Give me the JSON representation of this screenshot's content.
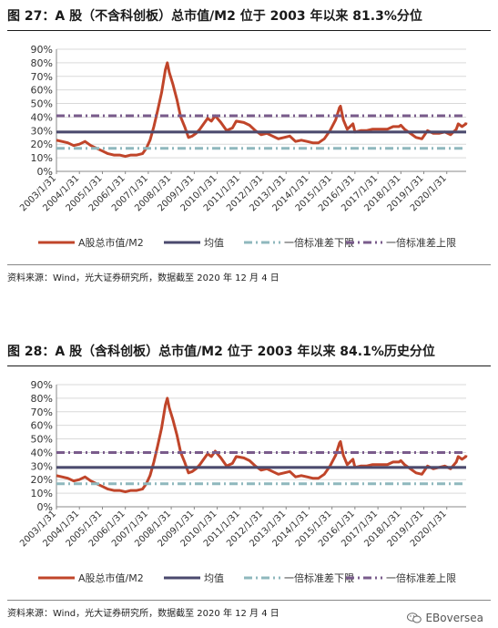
{
  "panels": [
    {
      "title": "图 27：A 股（不含科创板）总市值/M2 位于 2003 年以来 81.3%分位",
      "source": "资料来源：Wind，光大证券研究所，数据截至 2020 年 12 月 4 日"
    },
    {
      "title": "图 28：A 股（含科创板）总市值/M2 位于 2003 年以来 84.1%历史分位",
      "source": "资料来源：Wind，光大证券研究所，数据截至 2020 年 12 月 4 日"
    }
  ],
  "watermark": {
    "text": "EBoversea",
    "icon": "wechat-icon"
  },
  "colors": {
    "ratio": "#c0452a",
    "mean": "#4b4a6e",
    "lower": "#8fb8bd",
    "upper": "#7a5c8c",
    "grid": "#d9d9d9",
    "axis": "#888888"
  },
  "chart_data": [
    {
      "type": "line",
      "title": "",
      "xlabel": "",
      "ylabel": "",
      "ylim": [
        0,
        90
      ],
      "y_unit": "%",
      "y_ticks": [
        "0%",
        "10%",
        "20%",
        "30%",
        "40%",
        "50%",
        "60%",
        "70%",
        "80%",
        "90%"
      ],
      "x_ticks": [
        "2003/1/31",
        "2004/1/31",
        "2005/1/31",
        "2006/1/31",
        "2007/1/31",
        "2008/1/31",
        "2009/1/31",
        "2010/1/31",
        "2011/1/31",
        "2012/1/31",
        "2013/1/31",
        "2014/1/31",
        "2015/1/31",
        "2016/1/31",
        "2017/1/31",
        "2018/1/31",
        "2019/1/31",
        "2020/1/31"
      ],
      "x_range": [
        "2003-01-31",
        "2020-12-04"
      ],
      "legend_position": "bottom",
      "grid": true,
      "series": [
        {
          "name": "A股总市值/M2",
          "style": "solid",
          "points": [
            [
              "2003-01-31",
              23
            ],
            [
              "2003-04-30",
              22
            ],
            [
              "2003-07-31",
              21
            ],
            [
              "2003-10-31",
              19
            ],
            [
              "2004-01-31",
              20
            ],
            [
              "2004-04-30",
              22
            ],
            [
              "2004-07-31",
              19
            ],
            [
              "2004-10-31",
              17
            ],
            [
              "2005-01-31",
              15
            ],
            [
              "2005-04-30",
              13
            ],
            [
              "2005-07-31",
              12
            ],
            [
              "2005-10-31",
              12
            ],
            [
              "2006-01-31",
              11
            ],
            [
              "2006-04-30",
              12
            ],
            [
              "2006-07-31",
              12
            ],
            [
              "2006-10-31",
              13
            ],
            [
              "2006-12-31",
              17
            ],
            [
              "2007-02-28",
              23
            ],
            [
              "2007-04-30",
              33
            ],
            [
              "2007-06-30",
              45
            ],
            [
              "2007-08-31",
              58
            ],
            [
              "2007-10-31",
              75
            ],
            [
              "2007-11-30",
              80
            ],
            [
              "2007-12-31",
              73
            ],
            [
              "2008-02-28",
              64
            ],
            [
              "2008-04-30",
              53
            ],
            [
              "2008-06-30",
              40
            ],
            [
              "2008-08-31",
              33
            ],
            [
              "2008-10-31",
              25
            ],
            [
              "2008-12-31",
              26
            ],
            [
              "2009-02-28",
              28
            ],
            [
              "2009-04-30",
              31
            ],
            [
              "2009-06-30",
              35
            ],
            [
              "2009-08-31",
              39
            ],
            [
              "2009-10-31",
              37
            ],
            [
              "2009-12-31",
              41
            ],
            [
              "2010-03-31",
              36
            ],
            [
              "2010-06-30",
              30
            ],
            [
              "2010-09-30",
              32
            ],
            [
              "2010-11-30",
              37
            ],
            [
              "2011-03-31",
              36
            ],
            [
              "2011-06-30",
              34
            ],
            [
              "2011-09-30",
              30
            ],
            [
              "2011-12-31",
              27
            ],
            [
              "2012-03-31",
              28
            ],
            [
              "2012-06-30",
              26
            ],
            [
              "2012-09-30",
              24
            ],
            [
              "2012-12-31",
              25
            ],
            [
              "2013-03-31",
              26
            ],
            [
              "2013-06-30",
              22
            ],
            [
              "2013-09-30",
              23
            ],
            [
              "2013-12-31",
              22
            ],
            [
              "2014-03-31",
              21
            ],
            [
              "2014-06-30",
              21
            ],
            [
              "2014-09-30",
              24
            ],
            [
              "2014-12-31",
              30
            ],
            [
              "2015-03-31",
              38
            ],
            [
              "2015-05-31",
              47
            ],
            [
              "2015-06-15",
              48
            ],
            [
              "2015-07-31",
              38
            ],
            [
              "2015-09-30",
              31
            ],
            [
              "2015-12-31",
              35
            ],
            [
              "2016-01-31",
              29
            ],
            [
              "2016-04-30",
              30
            ],
            [
              "2016-07-31",
              30
            ],
            [
              "2016-10-31",
              31
            ],
            [
              "2016-12-31",
              31
            ],
            [
              "2017-03-31",
              31
            ],
            [
              "2017-06-30",
              31
            ],
            [
              "2017-09-30",
              33
            ],
            [
              "2017-12-31",
              33
            ],
            [
              "2018-01-31",
              34
            ],
            [
              "2018-03-31",
              31
            ],
            [
              "2018-06-30",
              28
            ],
            [
              "2018-09-30",
              25
            ],
            [
              "2018-12-31",
              24
            ],
            [
              "2019-03-31",
              30
            ],
            [
              "2019-06-30",
              28
            ],
            [
              "2019-09-30",
              28
            ],
            [
              "2019-12-31",
              29
            ],
            [
              "2020-03-31",
              27
            ],
            [
              "2020-06-30",
              31
            ],
            [
              "2020-07-31",
              35
            ],
            [
              "2020-09-30",
              33
            ],
            [
              "2020-11-30",
              35
            ],
            [
              "2020-12-04",
              36
            ]
          ]
        },
        {
          "name": "均值",
          "style": "solid",
          "constant": 29
        },
        {
          "name": "一倍标准差下限",
          "style": "dashdot",
          "constant": 17
        },
        {
          "name": "一倍标准差上限",
          "style": "dashdot",
          "constant": 41
        }
      ]
    },
    {
      "type": "line",
      "title": "",
      "xlabel": "",
      "ylabel": "",
      "ylim": [
        0,
        90
      ],
      "y_unit": "%",
      "y_ticks": [
        "0%",
        "10%",
        "20%",
        "30%",
        "40%",
        "50%",
        "60%",
        "70%",
        "80%",
        "90%"
      ],
      "x_ticks": [
        "2003/1/31",
        "2004/1/31",
        "2005/1/31",
        "2006/1/31",
        "2007/1/31",
        "2008/1/31",
        "2009/1/31",
        "2010/1/31",
        "2011/1/31",
        "2012/1/31",
        "2013/1/31",
        "2014/1/31",
        "2015/1/31",
        "2016/1/31",
        "2017/1/31",
        "2018/1/31",
        "2019/1/31",
        "2020/1/31"
      ],
      "x_range": [
        "2003-01-31",
        "2020-12-04"
      ],
      "legend_position": "bottom",
      "grid": true,
      "series": [
        {
          "name": "A股总市值/M2",
          "style": "solid",
          "points": [
            [
              "2003-01-31",
              23
            ],
            [
              "2003-04-30",
              22
            ],
            [
              "2003-07-31",
              21
            ],
            [
              "2003-10-31",
              19
            ],
            [
              "2004-01-31",
              20
            ],
            [
              "2004-04-30",
              22
            ],
            [
              "2004-07-31",
              19
            ],
            [
              "2004-10-31",
              17
            ],
            [
              "2005-01-31",
              15
            ],
            [
              "2005-04-30",
              13
            ],
            [
              "2005-07-31",
              12
            ],
            [
              "2005-10-31",
              12
            ],
            [
              "2006-01-31",
              11
            ],
            [
              "2006-04-30",
              12
            ],
            [
              "2006-07-31",
              12
            ],
            [
              "2006-10-31",
              13
            ],
            [
              "2006-12-31",
              17
            ],
            [
              "2007-02-28",
              23
            ],
            [
              "2007-04-30",
              33
            ],
            [
              "2007-06-30",
              45
            ],
            [
              "2007-08-31",
              58
            ],
            [
              "2007-10-31",
              75
            ],
            [
              "2007-11-30",
              80
            ],
            [
              "2007-12-31",
              73
            ],
            [
              "2008-02-28",
              64
            ],
            [
              "2008-04-30",
              53
            ],
            [
              "2008-06-30",
              40
            ],
            [
              "2008-08-31",
              33
            ],
            [
              "2008-10-31",
              25
            ],
            [
              "2008-12-31",
              26
            ],
            [
              "2009-02-28",
              28
            ],
            [
              "2009-04-30",
              31
            ],
            [
              "2009-06-30",
              35
            ],
            [
              "2009-08-31",
              39
            ],
            [
              "2009-10-31",
              37
            ],
            [
              "2009-12-31",
              41
            ],
            [
              "2010-03-31",
              36
            ],
            [
              "2010-06-30",
              30
            ],
            [
              "2010-09-30",
              32
            ],
            [
              "2010-11-30",
              37
            ],
            [
              "2011-03-31",
              36
            ],
            [
              "2011-06-30",
              34
            ],
            [
              "2011-09-30",
              30
            ],
            [
              "2011-12-31",
              27
            ],
            [
              "2012-03-31",
              28
            ],
            [
              "2012-06-30",
              26
            ],
            [
              "2012-09-30",
              24
            ],
            [
              "2012-12-31",
              25
            ],
            [
              "2013-03-31",
              26
            ],
            [
              "2013-06-30",
              22
            ],
            [
              "2013-09-30",
              23
            ],
            [
              "2013-12-31",
              22
            ],
            [
              "2014-03-31",
              21
            ],
            [
              "2014-06-30",
              21
            ],
            [
              "2014-09-30",
              24
            ],
            [
              "2014-12-31",
              30
            ],
            [
              "2015-03-31",
              38
            ],
            [
              "2015-05-31",
              47
            ],
            [
              "2015-06-15",
              48
            ],
            [
              "2015-07-31",
              38
            ],
            [
              "2015-09-30",
              31
            ],
            [
              "2015-12-31",
              35
            ],
            [
              "2016-01-31",
              29
            ],
            [
              "2016-04-30",
              30
            ],
            [
              "2016-07-31",
              30
            ],
            [
              "2016-10-31",
              31
            ],
            [
              "2016-12-31",
              31
            ],
            [
              "2017-03-31",
              31
            ],
            [
              "2017-06-30",
              31
            ],
            [
              "2017-09-30",
              33
            ],
            [
              "2017-12-31",
              33
            ],
            [
              "2018-01-31",
              34
            ],
            [
              "2018-03-31",
              31
            ],
            [
              "2018-06-30",
              28
            ],
            [
              "2018-09-30",
              25
            ],
            [
              "2018-12-31",
              24
            ],
            [
              "2019-03-31",
              30
            ],
            [
              "2019-06-30",
              28
            ],
            [
              "2019-09-30",
              29
            ],
            [
              "2019-12-31",
              30
            ],
            [
              "2020-03-31",
              28
            ],
            [
              "2020-06-30",
              33
            ],
            [
              "2020-07-31",
              37
            ],
            [
              "2020-09-30",
              35
            ],
            [
              "2020-11-30",
              37
            ],
            [
              "2020-12-04",
              38
            ]
          ]
        },
        {
          "name": "均值",
          "style": "solid",
          "constant": 29
        },
        {
          "name": "一倍标准差下限",
          "style": "dashdot",
          "constant": 17
        },
        {
          "name": "一倍标准差上限",
          "style": "dashdot",
          "constant": 40
        }
      ]
    }
  ]
}
